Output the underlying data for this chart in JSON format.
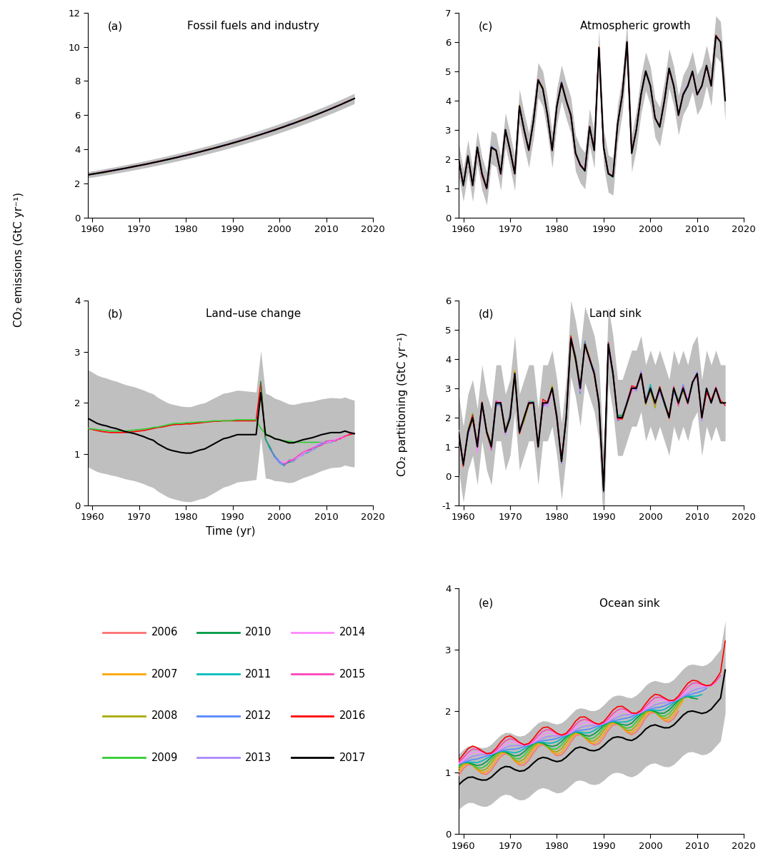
{
  "panels": {
    "a": {
      "title": "Fossil fuels and industry",
      "label": "(a)",
      "ylim": [
        0,
        12
      ],
      "yticks": [
        0,
        2,
        4,
        6,
        8,
        10,
        12
      ]
    },
    "b": {
      "title": "Land–use change",
      "label": "(b)",
      "ylim": [
        0,
        4
      ],
      "yticks": [
        0,
        1,
        2,
        3,
        4
      ]
    },
    "c": {
      "title": "Atmospheric growth",
      "label": "(c)",
      "ylim": [
        0,
        7
      ],
      "yticks": [
        0,
        1,
        2,
        3,
        4,
        5,
        6,
        7
      ]
    },
    "d": {
      "title": "Land sink",
      "label": "(d)",
      "ylim": [
        -1,
        6
      ],
      "yticks": [
        -1,
        0,
        1,
        2,
        3,
        4,
        5,
        6
      ]
    },
    "e": {
      "title": "Ocean sink",
      "label": "(e)",
      "ylim": [
        0,
        4
      ],
      "yticks": [
        0,
        1,
        2,
        3,
        4
      ]
    }
  },
  "xlim": [
    1959,
    2017.5
  ],
  "xticks": [
    1960,
    1970,
    1980,
    1990,
    2000,
    2010,
    2020
  ],
  "xticklabels": [
    "1960",
    "1970",
    "1980",
    "1990",
    "2000",
    "2010",
    "2020"
  ],
  "ylabel_left": "CO₂ emissions (GtC yr⁻¹)",
  "ylabel_right": "CO₂ partitioning (GtC yr⁻¹)",
  "xlabel": "Time (yr)",
  "legend_entries": [
    {
      "year": "2006",
      "color": "#FF7070"
    },
    {
      "year": "2007",
      "color": "#FFA500"
    },
    {
      "year": "2008",
      "color": "#AAAA00"
    },
    {
      "year": "2009",
      "color": "#33CC33"
    },
    {
      "year": "2010",
      "color": "#009944"
    },
    {
      "year": "2011",
      "color": "#00BBBB"
    },
    {
      "year": "2012",
      "color": "#5588FF"
    },
    {
      "year": "2013",
      "color": "#AA88FF"
    },
    {
      "year": "2014",
      "color": "#FF88FF"
    },
    {
      "year": "2015",
      "color": "#FF44BB"
    },
    {
      "year": "2016",
      "color": "#FF0000"
    },
    {
      "year": "2017",
      "color": "#000000"
    }
  ],
  "shadow_color": "#AAAAAA"
}
